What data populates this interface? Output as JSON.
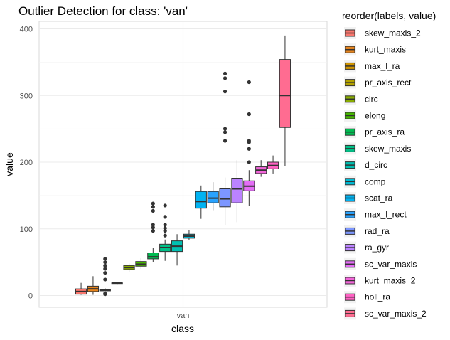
{
  "chart_data": {
    "type": "boxplot",
    "title": "Outlier Detection for class: 'van'",
    "xlabel": "class",
    "ylabel": "value",
    "categories": [
      "van"
    ],
    "ylim": [
      -20,
      410
    ],
    "yticks": [
      0,
      100,
      200,
      300,
      400
    ],
    "grid": true,
    "legend": {
      "title": "reorder(labels, value)",
      "position": "right"
    },
    "series": [
      {
        "name": "skew_maxis_2",
        "color": "#F8766D",
        "min": 1,
        "q1": 2,
        "median": 6,
        "q3": 10,
        "max": 19,
        "outliers": []
      },
      {
        "name": "kurt_maxis",
        "color": "#E7851E",
        "min": 1,
        "q1": 6,
        "median": 10,
        "q3": 14,
        "max": 29,
        "outliers": []
      },
      {
        "name": "max_l_ra",
        "color": "#D09400",
        "min": 3,
        "q1": 7,
        "median": 8,
        "q3": 9,
        "max": 11,
        "outliers": [
          2,
          3,
          24,
          34,
          40,
          45,
          50,
          55
        ]
      },
      {
        "name": "pr_axis_rect",
        "color": "#B2A100",
        "min": 17,
        "q1": 18,
        "median": 19,
        "q3": 19,
        "max": 20,
        "outliers": []
      },
      {
        "name": "circ",
        "color": "#89AC00",
        "min": 35,
        "q1": 39,
        "median": 42,
        "q3": 45,
        "max": 48,
        "outliers": []
      },
      {
        "name": "elong",
        "color": "#45B500",
        "min": 40,
        "q1": 44,
        "median": 47,
        "q3": 51,
        "max": 56,
        "outliers": []
      },
      {
        "name": "pr_axis_ra",
        "color": "#00BC51",
        "min": 50,
        "q1": 55,
        "median": 58,
        "q3": 64,
        "max": 72,
        "outliers": [
          97,
          102,
          106,
          127,
          133,
          138
        ]
      },
      {
        "name": "skew_maxis",
        "color": "#00C087",
        "min": 52,
        "q1": 66,
        "median": 72,
        "q3": 77,
        "max": 84,
        "outliers": [
          90,
          97,
          101,
          106,
          118,
          135
        ]
      },
      {
        "name": "d_circ",
        "color": "#00C0B2",
        "min": 45,
        "q1": 66,
        "median": 74,
        "q3": 82,
        "max": 92,
        "outliers": []
      },
      {
        "name": "comp",
        "color": "#00BCD6",
        "min": 83,
        "q1": 86,
        "median": 89,
        "q3": 92,
        "max": 98,
        "outliers": []
      },
      {
        "name": "scat_ra",
        "color": "#00B3F2",
        "min": 115,
        "q1": 131,
        "median": 141,
        "q3": 156,
        "max": 165,
        "outliers": []
      },
      {
        "name": "max_l_rect",
        "color": "#29A3FF",
        "min": 128,
        "q1": 139,
        "median": 146,
        "q3": 156,
        "max": 170,
        "outliers": []
      },
      {
        "name": "rad_ra",
        "color": "#7C96FF",
        "min": 105,
        "q1": 133,
        "median": 145,
        "q3": 160,
        "max": 177,
        "outliers": [
          232,
          245,
          250,
          306,
          326,
          333
        ]
      },
      {
        "name": "ra_gyr",
        "color": "#BB83FF",
        "min": 110,
        "q1": 139,
        "median": 160,
        "q3": 176,
        "max": 203,
        "outliers": []
      },
      {
        "name": "sc_var_maxis",
        "color": "#E46DF6",
        "min": 134,
        "q1": 157,
        "median": 164,
        "q3": 172,
        "max": 188,
        "outliers": [
          200,
          220,
          230,
          232,
          272,
          320
        ]
      },
      {
        "name": "kurt_maxis_2",
        "color": "#F265D9",
        "min": 178,
        "q1": 183,
        "median": 188,
        "q3": 193,
        "max": 203,
        "outliers": []
      },
      {
        "name": "holl_ra",
        "color": "#FF61C3",
        "min": 183,
        "q1": 190,
        "median": 195,
        "q3": 200,
        "max": 210,
        "outliers": []
      },
      {
        "name": "sc_var_maxis_2",
        "color": "#FF6C91",
        "min": 194,
        "q1": 252,
        "median": 300,
        "q3": 354,
        "max": 390,
        "outliers": []
      }
    ]
  }
}
